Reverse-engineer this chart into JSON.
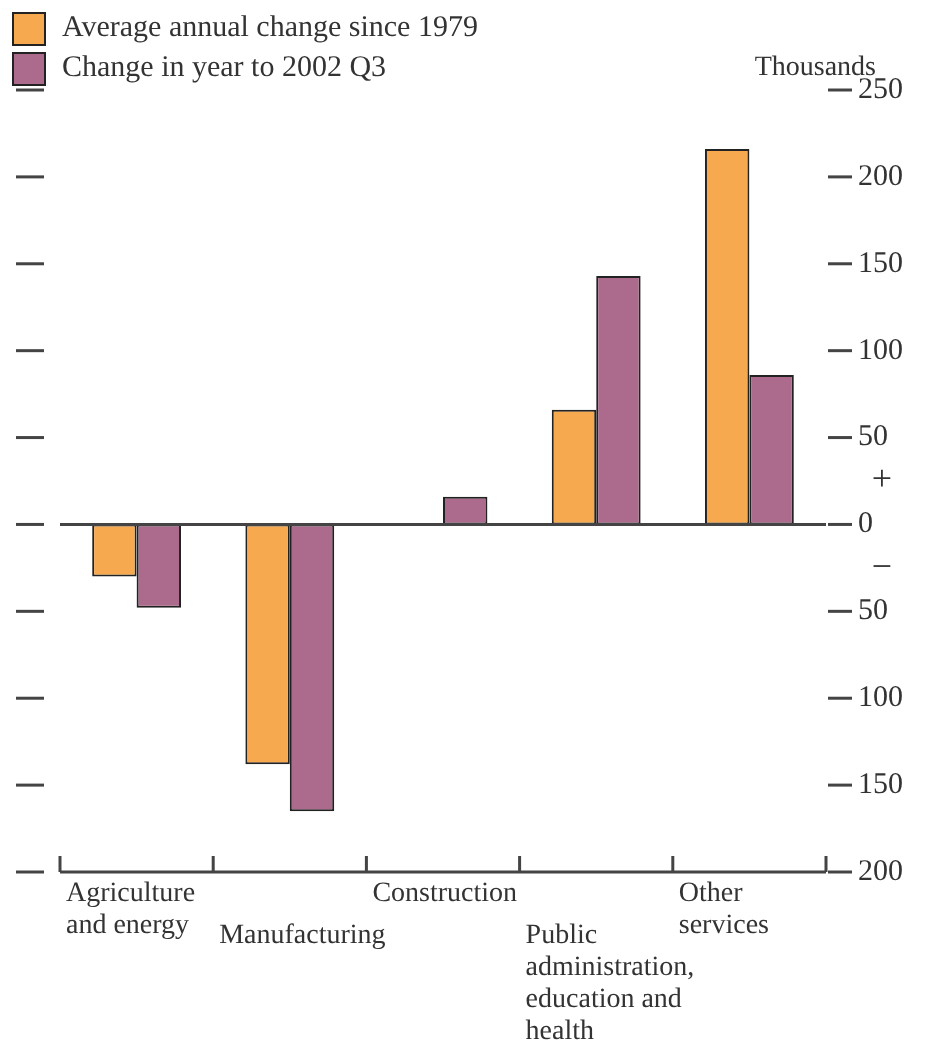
{
  "chart_data": {
    "type": "bar",
    "ylabel": "Thousands",
    "categories": [
      "Agriculture and energy",
      "Manufacturing",
      "Construction",
      "Public administration, education and health",
      "Other services"
    ],
    "series": [
      {
        "name": "Average annual change since 1979",
        "color": "#f7a94f",
        "values": [
          -30,
          -138,
          0,
          66,
          216
        ]
      },
      {
        "name": "Change in year to 2002 Q3",
        "color": "#ac6b8c",
        "values": [
          -48,
          -165,
          16,
          143,
          86
        ]
      }
    ],
    "ylim": [
      -200,
      250
    ],
    "yticks": [
      {
        "value": -200,
        "label": "200"
      },
      {
        "value": -150,
        "label": "150"
      },
      {
        "value": -100,
        "label": "100"
      },
      {
        "value": -50,
        "label": "50"
      },
      0,
      50,
      100,
      150,
      200,
      250
    ],
    "annotations": [
      "+",
      "−"
    ],
    "legend": "top left"
  }
}
